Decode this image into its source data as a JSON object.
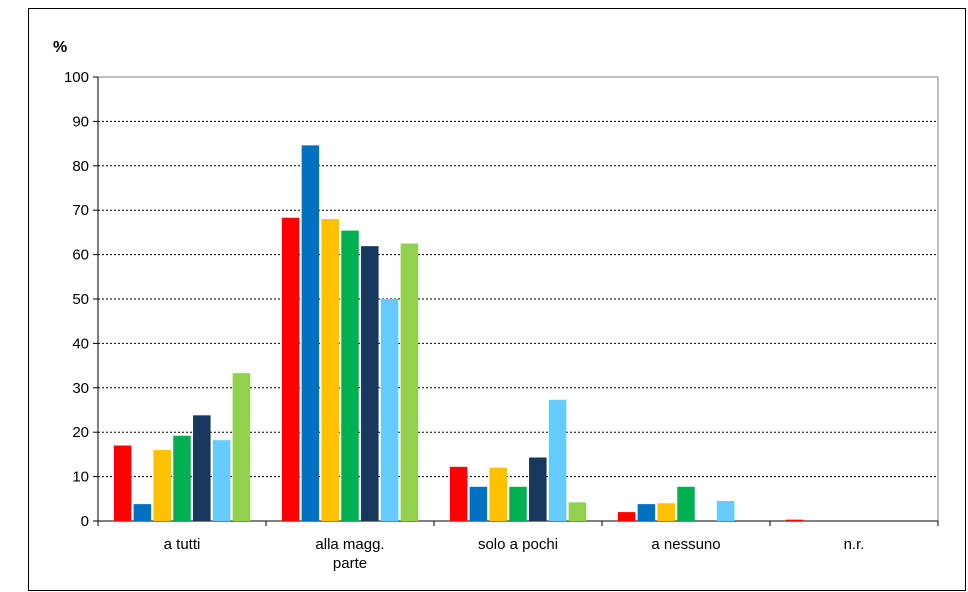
{
  "chart_data": {
    "type": "bar",
    "ylabel": "%",
    "ylim": [
      0,
      100
    ],
    "yticks": [
      0,
      10,
      20,
      30,
      40,
      50,
      60,
      70,
      80,
      90,
      100
    ],
    "grid": true,
    "categories": [
      [
        "a tutti"
      ],
      [
        "alla magg.",
        "parte"
      ],
      [
        "solo a pochi"
      ],
      [
        "a nessuno"
      ],
      [
        "n.r."
      ]
    ],
    "series": [
      {
        "color": "#ff0000",
        "values": [
          17,
          68.3,
          12.2,
          2.0,
          0.3
        ]
      },
      {
        "color": "#0070c0",
        "values": [
          3.8,
          84.6,
          7.7,
          3.8,
          0
        ]
      },
      {
        "color": "#ffc000",
        "values": [
          16.0,
          68.0,
          12.0,
          4.0,
          0
        ]
      },
      {
        "color": "#00b050",
        "values": [
          19.2,
          65.4,
          7.7,
          7.7,
          0
        ]
      },
      {
        "color": "#17375e",
        "values": [
          23.8,
          61.9,
          14.3,
          0,
          0
        ]
      },
      {
        "color": "#66ccff",
        "values": [
          18.2,
          50.0,
          27.3,
          4.5,
          0
        ]
      },
      {
        "color": "#92d050",
        "values": [
          33.3,
          62.5,
          4.2,
          0,
          0
        ]
      }
    ]
  }
}
